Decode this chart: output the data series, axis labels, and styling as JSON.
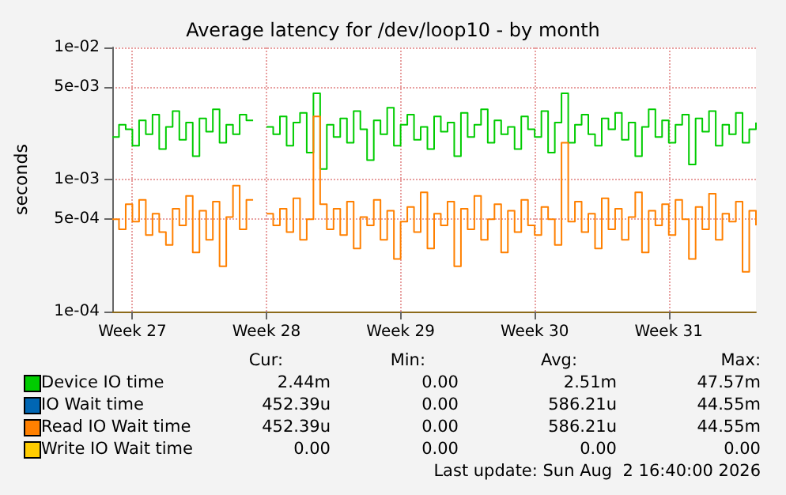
{
  "chart_data": {
    "type": "step",
    "title": "Average latency for /dev/loop10 - by month",
    "ylabel": "seconds",
    "categories": [
      null,
      null,
      null,
      "Week 27",
      null,
      null,
      null,
      null,
      null,
      null,
      null,
      null,
      null,
      null,
      null,
      null,
      null,
      null,
      null,
      null,
      null,
      null,
      null,
      "Week 28",
      null,
      null,
      null,
      null,
      null,
      null,
      null,
      null,
      null,
      null,
      null,
      null,
      null,
      null,
      null,
      null,
      null,
      null,
      null,
      "Week 29",
      null,
      null,
      null,
      null,
      null,
      null,
      null,
      null,
      null,
      null,
      null,
      null,
      null,
      null,
      null,
      null,
      null,
      null,
      null,
      "Week 30",
      null,
      null,
      null,
      null,
      null,
      null,
      null,
      null,
      null,
      null,
      null,
      null,
      null,
      null,
      null,
      null,
      null,
      null,
      null,
      "Week 31",
      null,
      null,
      null,
      null,
      null,
      null,
      null,
      null,
      null,
      null,
      null,
      null,
      null
    ],
    "series": [
      {
        "name": "Device IO time",
        "color": "#00cc00",
        "values": [
          0.0021,
          0.0026,
          0.0024,
          0.0018,
          0.0028,
          0.0022,
          0.0031,
          0.0017,
          0.0025,
          0.0033,
          0.002,
          0.0027,
          0.0015,
          0.0029,
          0.0023,
          0.0034,
          0.0019,
          0.0026,
          0.0022,
          0.0031,
          0.0028,
          null,
          null,
          0.0025,
          0.0022,
          0.003,
          0.0018,
          0.0027,
          0.0032,
          0.0016,
          0.0045,
          0.0012,
          0.0026,
          0.0021,
          0.0029,
          0.0019,
          0.0033,
          0.0024,
          0.0014,
          0.0028,
          0.0022,
          0.0035,
          0.0018,
          0.0026,
          0.0031,
          0.002,
          0.0025,
          0.0017,
          0.003,
          0.0023,
          0.0027,
          0.0015,
          0.0032,
          0.0021,
          0.0026,
          0.0034,
          0.0019,
          0.0028,
          0.0022,
          0.0025,
          0.0017,
          0.003,
          0.0024,
          0.0021,
          0.0033,
          0.0016,
          0.0027,
          0.0045,
          0.0019,
          0.0026,
          0.0031,
          0.0022,
          0.0018,
          0.0029,
          0.0024,
          0.0032,
          0.002,
          0.0027,
          0.0015,
          0.0025,
          0.0034,
          0.0021,
          0.0028,
          0.0019,
          0.0026,
          0.0031,
          0.0013,
          0.0029,
          0.0023,
          0.0033,
          0.0018,
          0.0026,
          0.0022,
          0.0032,
          0.0019,
          0.0024,
          0.0027
        ]
      },
      {
        "name": "IO Wait time",
        "color": "#0066b3",
        "values": [
          null,
          null,
          null,
          null,
          null,
          null,
          null,
          null,
          null,
          null,
          null,
          null,
          null,
          null,
          null,
          null,
          null,
          null,
          null,
          null,
          null,
          null,
          null,
          null,
          null,
          null,
          null,
          null,
          null,
          null,
          null,
          null,
          null,
          null,
          null,
          null,
          null,
          null,
          null,
          null,
          null,
          null,
          null,
          null,
          null,
          null,
          null,
          null,
          null,
          null,
          null,
          null,
          null,
          null,
          null,
          null,
          null,
          null,
          null,
          null,
          null,
          null,
          null,
          null,
          null,
          null,
          null,
          null,
          null,
          null,
          null,
          null,
          null,
          null,
          null,
          null,
          null,
          null,
          null,
          null,
          null,
          null,
          null,
          null,
          null,
          null,
          null,
          null,
          null,
          null,
          null,
          null,
          null,
          null,
          null,
          null,
          null
        ]
      },
      {
        "name": "Read IO Wait time",
        "color": "#ff8000",
        "values": [
          0.0005,
          0.00042,
          0.00065,
          0.00048,
          0.0007,
          0.00038,
          0.00055,
          0.0004,
          0.00032,
          0.0006,
          0.00045,
          0.00075,
          0.00028,
          0.00058,
          0.00035,
          0.00068,
          0.00022,
          0.00052,
          0.0009,
          0.00042,
          0.0007,
          null,
          null,
          0.00055,
          0.00045,
          0.0006,
          0.0004,
          0.00072,
          0.00035,
          0.0005,
          0.003,
          0.00065,
          0.00042,
          0.0006,
          0.00038,
          0.00068,
          0.0003,
          0.00052,
          0.00045,
          0.0007,
          0.00035,
          0.00058,
          0.00025,
          0.00048,
          0.00062,
          0.0004,
          0.0008,
          0.0003,
          0.00055,
          0.00045,
          0.00068,
          0.00022,
          0.0006,
          0.00042,
          0.00075,
          0.00035,
          0.0005,
          0.00065,
          0.00028,
          0.00058,
          0.0004,
          0.0007,
          0.00045,
          0.00038,
          0.00062,
          0.0005,
          0.00032,
          0.0019,
          0.00048,
          0.00068,
          0.0004,
          0.00055,
          0.0003,
          0.00072,
          0.00042,
          0.0006,
          0.00035,
          0.00052,
          0.0008,
          0.00028,
          0.00058,
          0.00045,
          0.00065,
          0.00038,
          0.0007,
          0.0005,
          0.00025,
          0.00062,
          0.00042,
          0.00078,
          0.00035,
          0.00055,
          0.00048,
          0.00068,
          0.0002,
          0.00058,
          0.00045
        ]
      },
      {
        "name": "Write IO Wait time",
        "color": "#ffcc00",
        "values": [
          null,
          null,
          null,
          null,
          null,
          null,
          null,
          null,
          null,
          null,
          null,
          null,
          null,
          null,
          null,
          null,
          null,
          null,
          null,
          null,
          null,
          null,
          null,
          null,
          null,
          null,
          null,
          null,
          null,
          null,
          null,
          null,
          null,
          null,
          null,
          null,
          null,
          null,
          null,
          null,
          null,
          null,
          null,
          null,
          null,
          null,
          null,
          null,
          null,
          null,
          null,
          null,
          null,
          null,
          null,
          null,
          null,
          null,
          null,
          null,
          null,
          null,
          null,
          null,
          null,
          null,
          null,
          null,
          null,
          null,
          null,
          null,
          null,
          null,
          null,
          null,
          null,
          null,
          null,
          null,
          null,
          null,
          null,
          null,
          null,
          null,
          null,
          null,
          null,
          null,
          null,
          null,
          null,
          null,
          null,
          null,
          null
        ]
      }
    ],
    "ylim": [
      0.0001,
      0.01
    ],
    "yticks": [
      {
        "value": 0.0001,
        "label": "1e-04"
      },
      {
        "value": 0.0005,
        "label": "5e-04"
      },
      {
        "value": 0.001,
        "label": "1e-03"
      },
      {
        "value": 0.005,
        "label": "5e-03"
      },
      {
        "value": 0.01,
        "label": "1e-02"
      }
    ],
    "log": true,
    "grid": true,
    "legend": "bottom",
    "line_style": "solid",
    "marker": "none",
    "annotations": [
      "Cur:",
      "Min:",
      "Avg:",
      "Max:",
      "2.44m",
      "0.00",
      "2.51m",
      "47.57m",
      "452.39u",
      "0.00",
      "586.21u",
      "44.55m",
      "452.39u",
      "0.00",
      "586.21u",
      "44.55m",
      "0.00",
      "0.00",
      "0.00",
      "0.00",
      "Last update: Sun Aug  2 16:40:00 2026"
    ]
  }
}
